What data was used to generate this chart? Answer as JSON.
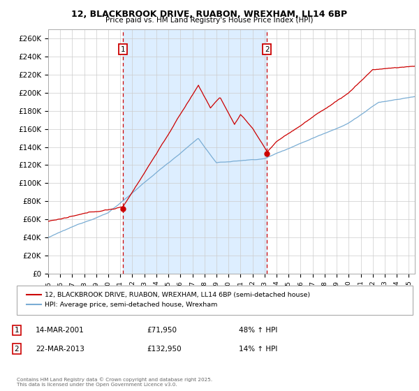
{
  "title": "12, BLACKBROOK DRIVE, RUABON, WREXHAM, LL14 6BP",
  "subtitle": "Price paid vs. HM Land Registry's House Price Index (HPI)",
  "legend_entry1": "12, BLACKBROOK DRIVE, RUABON, WREXHAM, LL14 6BP (semi-detached house)",
  "legend_entry2": "HPI: Average price, semi-detached house, Wrexham",
  "transaction1_label": "1",
  "transaction1_date": "14-MAR-2001",
  "transaction1_price": "£71,950",
  "transaction1_hpi": "48% ↑ HPI",
  "transaction1_year": 2001.2,
  "transaction1_value": 71950,
  "transaction2_label": "2",
  "transaction2_date": "22-MAR-2013",
  "transaction2_price": "£132,950",
  "transaction2_hpi": "14% ↑ HPI",
  "transaction2_year": 2013.2,
  "transaction2_value": 132950,
  "ylim": [
    0,
    270000
  ],
  "yticks": [
    0,
    20000,
    40000,
    60000,
    80000,
    100000,
    120000,
    140000,
    160000,
    180000,
    200000,
    220000,
    240000,
    260000
  ],
  "xlim_start": 1995,
  "xlim_end": 2025.5,
  "line1_color": "#cc0000",
  "line2_color": "#7aadd4",
  "vline_color": "#cc0000",
  "fill_color": "#ddeeff",
  "background_color": "#ffffff",
  "grid_color": "#cccccc",
  "footnote": "Contains HM Land Registry data © Crown copyright and database right 2025.\nThis data is licensed under the Open Government Licence v3.0."
}
